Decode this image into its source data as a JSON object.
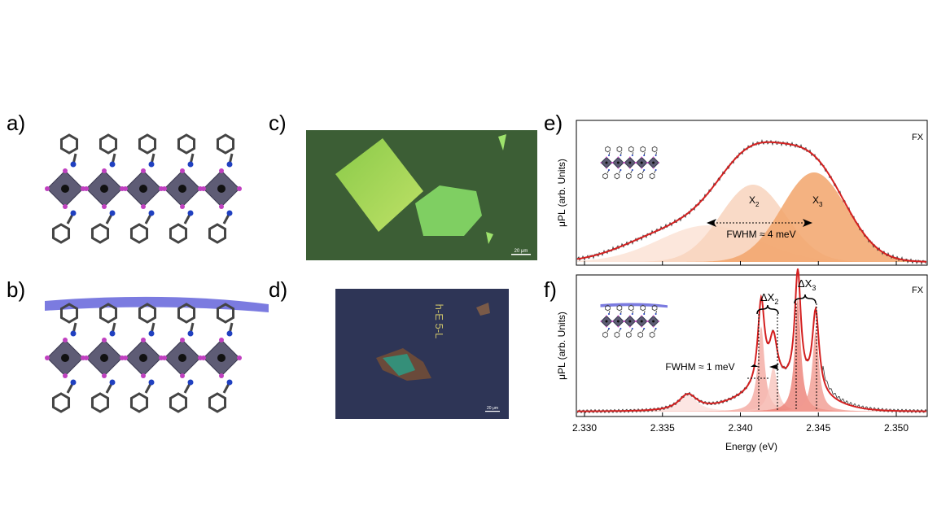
{
  "panel_labels": [
    "a)",
    "b)",
    "c)",
    "d)",
    "e)",
    "f)"
  ],
  "micrographs": {
    "c_scale": "20 μm",
    "d_scale": "20 μm",
    "d_marker": "h-E 5-L"
  },
  "spectrum_e": {
    "inset_label": "FX",
    "y_label": "μPL (arb. Units)",
    "peaks": [
      {
        "name": "X",
        "sub": "2"
      },
      {
        "name": "X",
        "sub": "3"
      }
    ],
    "fwhm": "FWHM ≈ 4 meV"
  },
  "spectrum_f": {
    "inset_label": "FX",
    "y_label": "μPL (arb. Units)",
    "splittings": [
      {
        "name": "ΔX",
        "sub": "2"
      },
      {
        "name": "ΔX",
        "sub": "3"
      }
    ],
    "fwhm": "FWHM ≈ 1 meV"
  },
  "x_axis": {
    "ticks": [
      "2.330",
      "2.335",
      "2.340",
      "2.345",
      "2.350"
    ],
    "label": "Energy (eV)"
  }
}
